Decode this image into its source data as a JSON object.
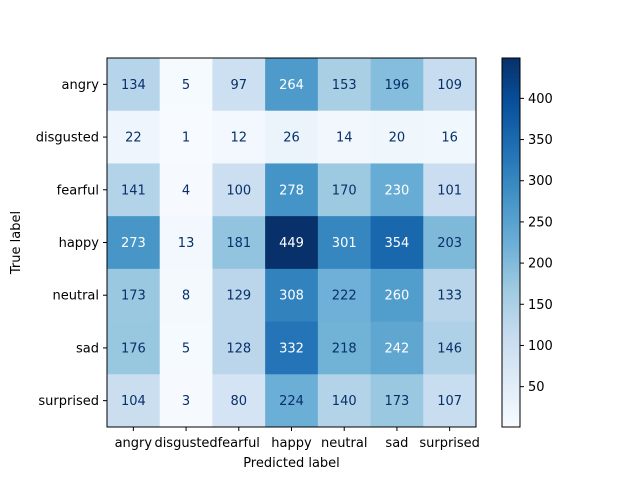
{
  "chart_data": {
    "type": "heatmap",
    "title": "",
    "xlabel": "Predicted label",
    "ylabel": "True label",
    "x_categories": [
      "angry",
      "disgusted",
      "fearful",
      "happy",
      "neutral",
      "sad",
      "surprised"
    ],
    "y_categories": [
      "angry",
      "disgusted",
      "fearful",
      "happy",
      "neutral",
      "sad",
      "surprised"
    ],
    "values": [
      [
        134,
        5,
        97,
        264,
        153,
        196,
        109
      ],
      [
        22,
        1,
        12,
        26,
        14,
        20,
        16
      ],
      [
        141,
        4,
        100,
        278,
        170,
        230,
        101
      ],
      [
        273,
        13,
        181,
        449,
        301,
        354,
        203
      ],
      [
        173,
        8,
        129,
        308,
        222,
        260,
        133
      ],
      [
        176,
        5,
        128,
        332,
        218,
        242,
        146
      ],
      [
        104,
        3,
        80,
        224,
        140,
        173,
        107
      ]
    ],
    "colormap": "Blues",
    "color_range": [
      1,
      449
    ],
    "colorbar_ticks": [
      50,
      100,
      150,
      200,
      250,
      300,
      350,
      400
    ],
    "grid": false
  }
}
